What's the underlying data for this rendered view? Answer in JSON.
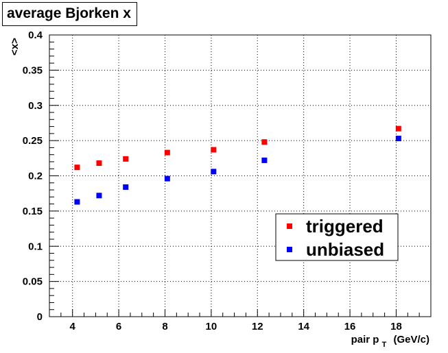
{
  "chart_data": {
    "type": "scatter",
    "title": "average Bjorken x",
    "xlabel": {
      "main": "pair p",
      "sub": "T",
      "unit": "(GeV/c)"
    },
    "ylabel": "<x>",
    "xlim": [
      3,
      19.5
    ],
    "ylim": [
      0,
      0.4
    ],
    "x_ticks": [
      4,
      6,
      8,
      10,
      12,
      14,
      16,
      18
    ],
    "x_tick_labels": [
      "4",
      "6",
      "8",
      "10",
      "12",
      "14",
      "16",
      "18"
    ],
    "y_ticks": [
      0,
      0.05,
      0.1,
      0.15,
      0.2,
      0.25,
      0.3,
      0.35,
      0.4
    ],
    "y_tick_labels": [
      "0",
      "0.05",
      "0.1",
      "0.15",
      "0.2",
      "0.25",
      "0.3",
      "0.35",
      "0.4"
    ],
    "grid": true,
    "legend_position": "lower-right",
    "series": [
      {
        "name": "triggered",
        "color": "#ff0000",
        "marker": "square",
        "x": [
          4.2,
          5.15,
          6.3,
          8.1,
          10.1,
          12.3,
          18.1
        ],
        "y": [
          0.212,
          0.218,
          0.224,
          0.233,
          0.237,
          0.248,
          0.267
        ]
      },
      {
        "name": "unbiased",
        "color": "#0000ff",
        "marker": "square",
        "x": [
          4.2,
          5.15,
          6.3,
          8.1,
          10.1,
          12.3,
          18.1
        ],
        "y": [
          0.163,
          0.172,
          0.184,
          0.196,
          0.206,
          0.222,
          0.253
        ]
      }
    ]
  }
}
